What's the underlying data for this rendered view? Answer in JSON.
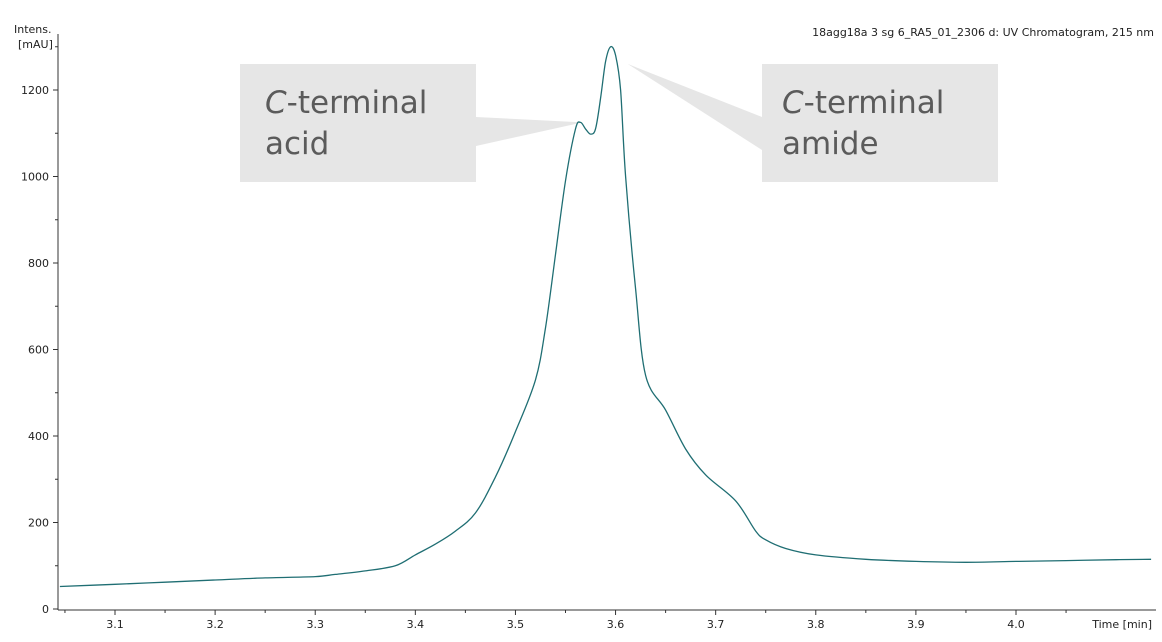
{
  "chart_data": {
    "type": "line",
    "title": "18agg18a 3 sg 6_RA5_01_2306 d: UV Chromatogram, 215 nm",
    "ylabel_line1": "Intens.",
    "ylabel_line2": "[mAU]",
    "xlabel": "Time [min]",
    "xlim": [
      3.045,
      4.135
    ],
    "ylim": [
      0,
      1330
    ],
    "x_ticks": [
      3.1,
      3.2,
      3.3,
      3.4,
      3.5,
      3.6,
      3.7,
      3.8,
      3.9,
      4.0
    ],
    "x_tick_labels": [
      "3.1",
      "3.2",
      "3.3",
      "3.4",
      "3.5",
      "3.6",
      "3.7",
      "3.8",
      "3.9",
      "4.0"
    ],
    "y_ticks": [
      0,
      200,
      400,
      600,
      800,
      1000,
      1200
    ],
    "y_tick_labels": [
      "0",
      "200",
      "400",
      "600",
      "800",
      "1000",
      "1200"
    ],
    "grid": false,
    "line_color": "#1f6e73",
    "series": [
      {
        "x": [
          3.045,
          3.1,
          3.15,
          3.2,
          3.25,
          3.3,
          3.32,
          3.35,
          3.38,
          3.4,
          3.42,
          3.44,
          3.46,
          3.48,
          3.5,
          3.52,
          3.53,
          3.54,
          3.55,
          3.56,
          3.565,
          3.57,
          3.575,
          3.58,
          3.585,
          3.59,
          3.595,
          3.6,
          3.605,
          3.61,
          3.62,
          3.63,
          3.65,
          3.67,
          3.69,
          3.72,
          3.74,
          3.75,
          3.77,
          3.8,
          3.85,
          3.9,
          3.95,
          4.0,
          4.05,
          4.1,
          4.135
        ],
        "y": [
          52,
          57,
          62,
          67,
          72,
          75,
          80,
          88,
          100,
          125,
          150,
          180,
          222,
          305,
          410,
          530,
          650,
          820,
          990,
          1110,
          1125,
          1110,
          1098,
          1110,
          1180,
          1265,
          1300,
          1280,
          1200,
          1000,
          740,
          540,
          460,
          370,
          310,
          250,
          180,
          160,
          140,
          125,
          115,
          110,
          108,
          110,
          112,
          114,
          115
        ]
      }
    ],
    "annotations": [
      {
        "line1_italic": "C",
        "line1_rest": "-terminal",
        "line2": "acid",
        "box_color": "#e6e6e6",
        "points_to": {
          "x": 3.567,
          "y": 1125
        }
      },
      {
        "line1_italic": "C",
        "line1_rest": "-terminal",
        "line2": "amide",
        "box_color": "#e6e6e6",
        "points_to": {
          "x": 3.6,
          "y": 1265
        }
      }
    ]
  }
}
